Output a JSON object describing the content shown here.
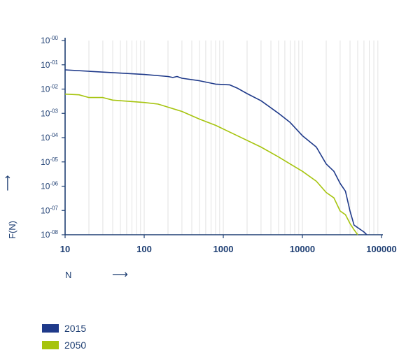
{
  "chart_data": {
    "type": "line",
    "title": "",
    "xlabel": "N",
    "ylabel": "F(N)",
    "xscale": "log",
    "yscale": "log",
    "xlim": [
      10,
      100000
    ],
    "ylim": [
      1e-08,
      1
    ],
    "grid": "vertical minor lines only",
    "legend_position": "bottom-left",
    "xticks": [
      {
        "value": 10,
        "label": "10"
      },
      {
        "value": 100,
        "label": "100"
      },
      {
        "value": 1000,
        "label": "1000"
      },
      {
        "value": 10000,
        "label": "10000"
      },
      {
        "value": 100000,
        "label": "100000"
      }
    ],
    "yticks": [
      {
        "value": 1,
        "base": "10",
        "exp": "-00"
      },
      {
        "value": 0.1,
        "base": "10",
        "exp": "-01"
      },
      {
        "value": 0.01,
        "base": "10",
        "exp": "-02"
      },
      {
        "value": 0.001,
        "base": "10",
        "exp": "-03"
      },
      {
        "value": 0.0001,
        "base": "10",
        "exp": "-04"
      },
      {
        "value": 1e-05,
        "base": "10",
        "exp": "-05"
      },
      {
        "value": 1e-06,
        "base": "10",
        "exp": "-06"
      },
      {
        "value": 1e-07,
        "base": "10",
        "exp": "-07"
      },
      {
        "value": 1e-08,
        "base": "10",
        "exp": "-08"
      }
    ],
    "series": [
      {
        "name": "2015",
        "color": "#1f3a8a",
        "points": [
          [
            10,
            0.062
          ],
          [
            30,
            0.05
          ],
          [
            100,
            0.04
          ],
          [
            200,
            0.033
          ],
          [
            230,
            0.03
          ],
          [
            260,
            0.033
          ],
          [
            300,
            0.028
          ],
          [
            500,
            0.022
          ],
          [
            800,
            0.016
          ],
          [
            1200,
            0.015
          ],
          [
            1500,
            0.011
          ],
          [
            2000,
            0.0065
          ],
          [
            3000,
            0.0033
          ],
          [
            5000,
            0.001
          ],
          [
            7000,
            0.00042
          ],
          [
            10000,
            0.00012
          ],
          [
            15000,
            4.1e-05
          ],
          [
            20000,
            8.2e-06
          ],
          [
            25000,
            4.1e-06
          ],
          [
            30000,
            1.3e-06
          ],
          [
            35000,
            6.2e-07
          ],
          [
            40000,
            9.5e-08
          ],
          [
            45000,
            2.5e-08
          ],
          [
            60000,
            1.3e-08
          ],
          [
            65000,
            1e-08
          ]
        ]
      },
      {
        "name": "2050",
        "color": "#a6c40e",
        "points": [
          [
            10,
            0.0062
          ],
          [
            15,
            0.0058
          ],
          [
            20,
            0.0045
          ],
          [
            30,
            0.0045
          ],
          [
            40,
            0.0035
          ],
          [
            100,
            0.0028
          ],
          [
            150,
            0.0024
          ],
          [
            200,
            0.0018
          ],
          [
            300,
            0.0012
          ],
          [
            500,
            0.00058
          ],
          [
            800,
            0.00032
          ],
          [
            1500,
            0.00012
          ],
          [
            3000,
            4.1e-05
          ],
          [
            5000,
            1.6e-05
          ],
          [
            7000,
            8.2e-06
          ],
          [
            10000,
            4.1e-06
          ],
          [
            15000,
            1.6e-06
          ],
          [
            20000,
            5.5e-07
          ],
          [
            25000,
            3.3e-07
          ],
          [
            30000,
            9.5e-08
          ],
          [
            35000,
            6.7e-08
          ],
          [
            40000,
            2.9e-08
          ],
          [
            45000,
            1.6e-08
          ],
          [
            50000,
            1e-08
          ]
        ]
      }
    ]
  }
}
